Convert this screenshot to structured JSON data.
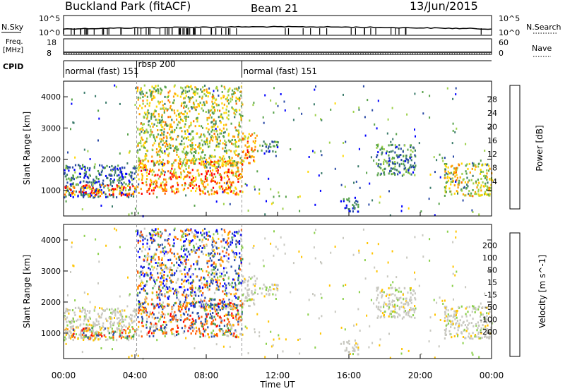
{
  "header": {
    "station": "Buckland Park (fitACF)",
    "beam": "Beam 21",
    "date": "13/Jun/2015"
  },
  "side_labels": {
    "nsky": "N.Sky",
    "nsearch": "N.Search",
    "freq_line1": "Freq.",
    "freq_line2": "[MHz]",
    "nave": "Nave",
    "cpid": "CPID"
  },
  "top_ticks": {
    "n_left": [
      "10^5",
      "10^0"
    ],
    "n_right": [
      "10^5",
      "10^0"
    ],
    "freq_left": [
      "18",
      "8"
    ],
    "nave_right": [
      "60",
      "0"
    ]
  },
  "cpid": [
    {
      "label": "normal (fast) 151",
      "start_h": 0.0
    },
    {
      "label": "rbsp 200",
      "start_h": 4.1
    },
    {
      "label": "normal (fast) 151",
      "start_h": 10.0
    }
  ],
  "chart_data": [
    {
      "type": "heatmap",
      "panel": "power",
      "xlabel": "",
      "ylabel": "Slant Range [km]",
      "xlim": [
        0,
        24
      ],
      "ylim": [
        180,
        4500
      ],
      "y_ticks": [
        1000,
        2000,
        3000,
        4000
      ],
      "colorbar_label": "Power [dB]",
      "colorbar_ticks": [
        "28",
        "24",
        "20",
        "16",
        "12",
        "8",
        "4"
      ],
      "colorbar_colors": [
        "#0000ff",
        "#2a4aa6",
        "#3a7a6a",
        "#57a24a",
        "#9cd049",
        "#ffd800",
        "#ffa000",
        "#ff6a00",
        "#ff0000"
      ],
      "regions": [
        {
          "t": [
            0.0,
            4.1
          ],
          "r": [
            800,
            1850
          ],
          "intensity": 0.25
        },
        {
          "t": [
            0.0,
            4.1
          ],
          "r": [
            850,
            1200
          ],
          "intensity": 0.8
        },
        {
          "t": [
            4.1,
            10.0
          ],
          "r": [
            900,
            2000
          ],
          "intensity": 0.75
        },
        {
          "t": [
            4.1,
            10.0
          ],
          "r": [
            1800,
            4400
          ],
          "intensity": 0.55
        },
        {
          "t": [
            10.0,
            10.8
          ],
          "r": [
            1900,
            2900
          ],
          "intensity": 0.7
        },
        {
          "t": [
            10.8,
            12.0
          ],
          "r": [
            2200,
            2600
          ],
          "intensity": 0.3
        },
        {
          "t": [
            15.5,
            16.5
          ],
          "r": [
            350,
            800
          ],
          "intensity": 0.2
        },
        {
          "t": [
            17.5,
            19.7
          ],
          "r": [
            1500,
            2500
          ],
          "intensity": 0.3
        },
        {
          "t": [
            21.3,
            24.0
          ],
          "r": [
            850,
            1900
          ],
          "intensity": 0.55
        }
      ]
    },
    {
      "type": "heatmap",
      "panel": "velocity",
      "xlabel": "Time UT",
      "ylabel": "Slant Range [km]",
      "xlim": [
        0,
        24
      ],
      "ylim": [
        180,
        4500
      ],
      "x_ticks": [
        "00:00",
        "04:00",
        "08:00",
        "12:00",
        "16:00",
        "20:00",
        "00:00"
      ],
      "y_ticks": [
        1000,
        2000,
        3000,
        4000
      ],
      "colorbar_label": "Velocity [m s^-1]",
      "colorbar_ticks": [
        "200",
        "100",
        "50",
        "15",
        "-15",
        "-50",
        "-100",
        "-200"
      ],
      "colorbar_colors": [
        "#ff0000",
        "#ff5a00",
        "#ff9600",
        "#ffc400",
        "#c8c8c0",
        "#c8c8c0",
        "#8ad04a",
        "#3c9a4a",
        "#2a4ca8",
        "#0000ff"
      ],
      "regions": [
        {
          "t": [
            0.0,
            4.1
          ],
          "r": [
            750,
            1250
          ],
          "velocity": 0
        },
        {
          "t": [
            0.0,
            4.1
          ],
          "r": [
            1250,
            1900
          ],
          "velocity": -20
        },
        {
          "t": [
            4.1,
            10.0
          ],
          "r": [
            900,
            2000
          ],
          "velocity": -10
        },
        {
          "t": [
            4.1,
            10.0
          ],
          "r": [
            1800,
            4400
          ],
          "velocity": 30
        },
        {
          "t": [
            10.0,
            12.0
          ],
          "r": [
            1900,
            2600
          ],
          "velocity": 0
        },
        {
          "t": [
            15.5,
            16.5
          ],
          "r": [
            350,
            800
          ],
          "velocity": 0
        },
        {
          "t": [
            17.5,
            19.7
          ],
          "r": [
            1500,
            2500
          ],
          "velocity": 0
        },
        {
          "t": [
            21.3,
            24.0
          ],
          "r": [
            850,
            1900
          ],
          "velocity": 0
        }
      ]
    }
  ]
}
